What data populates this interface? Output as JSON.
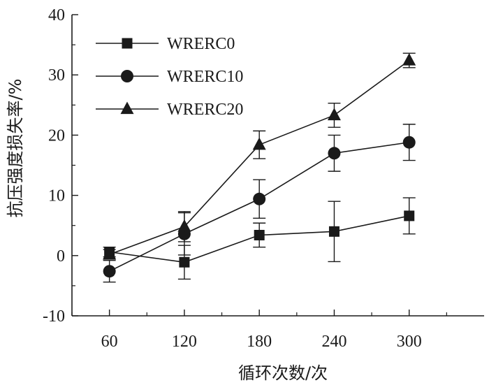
{
  "chart_data": {
    "type": "line",
    "title": "",
    "xlabel": "循环次数/次",
    "ylabel": "抗压强度损失率/%",
    "x": [
      60,
      120,
      180,
      240,
      300
    ],
    "xlim": [
      30,
      360
    ],
    "ylim": [
      -10,
      40
    ],
    "yticks": [
      -10,
      0,
      10,
      20,
      30,
      40
    ],
    "y_tick_labels": [
      "-10",
      "0",
      "10",
      "20",
      "30",
      "40"
    ],
    "x_tick_labels": [
      "60",
      "120",
      "180",
      "240",
      "300"
    ],
    "grid": false,
    "legend_position": "top-left",
    "series": [
      {
        "name": "WRERC0",
        "marker": "square",
        "values": [
          0.6,
          -1.1,
          3.4,
          4.0,
          6.6
        ],
        "errors": [
          0.8,
          2.8,
          2.0,
          5.0,
          3.0
        ]
      },
      {
        "name": "WRERC10",
        "marker": "circle",
        "values": [
          -2.6,
          3.6,
          9.4,
          17.0,
          18.8
        ],
        "errors": [
          1.8,
          3.5,
          3.2,
          3.0,
          3.0
        ]
      },
      {
        "name": "WRERC20",
        "marker": "triangle",
        "values": [
          0.2,
          4.8,
          18.4,
          23.3,
          32.4
        ],
        "errors": [
          0.8,
          2.5,
          2.3,
          2.0,
          1.2
        ]
      }
    ],
    "colors": {
      "line": "#1a1a1a",
      "background": "#ffffff"
    }
  }
}
